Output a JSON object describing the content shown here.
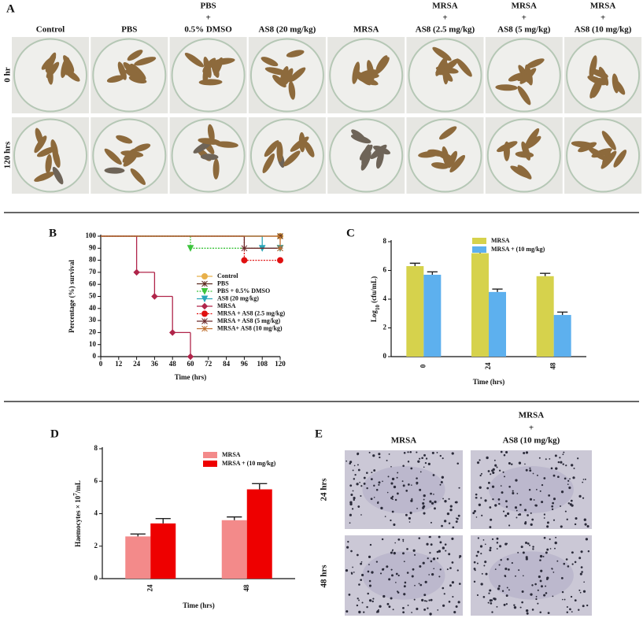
{
  "panel_a": {
    "label": "A",
    "columns": [
      [
        "Control"
      ],
      [
        "PBS"
      ],
      [
        "PBS",
        "+",
        "0.5% DMSO"
      ],
      [
        "AS8 (20 mg/kg)"
      ],
      [
        "MRSA"
      ],
      [
        "MRSA",
        "+",
        "AS8 (2.5 mg/kg)"
      ],
      [
        "MRSA",
        "+",
        "AS8 (5 mg/kg)"
      ],
      [
        "MRSA",
        "+",
        "AS8 (10 mg/kg)"
      ]
    ],
    "rows": [
      "0 hr",
      "120 hrs"
    ]
  },
  "chart_data": [
    {
      "label": "B",
      "type": "line",
      "step": true,
      "x_label": "Time (hrs)",
      "y_label": "Percentage (%) survival",
      "xlim": [
        0,
        120
      ],
      "xticks": [
        0,
        12,
        24,
        36,
        48,
        60,
        72,
        84,
        96,
        108,
        120
      ],
      "ylim": [
        0,
        100
      ],
      "yticks": [
        0,
        10,
        20,
        30,
        40,
        50,
        60,
        70,
        80,
        90,
        100
      ],
      "series": [
        {
          "name": "Control",
          "color": "#e8b04a",
          "marker": "circle",
          "x": [
            0,
            120
          ],
          "values": [
            100,
            100
          ]
        },
        {
          "name": "PBS",
          "color": "#5c2b20",
          "marker": "star",
          "x": [
            0,
            120
          ],
          "values": [
            100,
            100
          ]
        },
        {
          "name": "PBS + 0.5% DMSO",
          "color": "#3cc43c",
          "marker": "triangle-down",
          "dashed": true,
          "x": [
            0,
            60,
            120
          ],
          "values": [
            100,
            90,
            90
          ]
        },
        {
          "name": "AS8 (20 mg/kg)",
          "color": "#2aa6b8",
          "marker": "triangle-down",
          "x": [
            0,
            108,
            120
          ],
          "values": [
            100,
            90,
            90
          ]
        },
        {
          "name": "MRSA",
          "color": "#b0254a",
          "marker": "diamond",
          "x": [
            0,
            24,
            36,
            48,
            60
          ],
          "values": [
            100,
            70,
            50,
            20,
            0
          ]
        },
        {
          "name": "MRSA + AS8 (2.5 mg/kg)",
          "color": "#e01010",
          "marker": "circle",
          "dashed": true,
          "x": [
            0,
            96,
            120
          ],
          "values": [
            100,
            80,
            80
          ]
        },
        {
          "name": "MRSA + AS8 (5 mg/kg)",
          "color": "#6b2a2a",
          "marker": "star",
          "x": [
            0,
            96,
            120
          ],
          "values": [
            100,
            90,
            90
          ]
        },
        {
          "name": "MRSA+ AS8 (10 mg/kg)",
          "color": "#c07030",
          "marker": "star",
          "x": [
            0,
            120
          ],
          "values": [
            100,
            90
          ]
        }
      ]
    },
    {
      "label": "C",
      "type": "bar",
      "categories": [
        "0",
        "24",
        "48"
      ],
      "x_label": "Time (hrs)",
      "y_label": [
        {
          "text": "Log"
        },
        {
          "text": "10",
          "shift": "sub"
        },
        {
          "text": " (cfu/mL)"
        }
      ],
      "ylim": [
        0,
        8
      ],
      "yticks": [
        0,
        2,
        4,
        6,
        8
      ],
      "series": [
        {
          "name": "MRSA",
          "color": "#d6d24c",
          "values": [
            6.3,
            7.2,
            5.6
          ],
          "errors": [
            0.2,
            0.2,
            0.2
          ]
        },
        {
          "name": "MRSA + (10 mg/kg)",
          "color": "#5db0ee",
          "values": [
            5.7,
            4.5,
            2.9
          ],
          "errors": [
            0.2,
            0.2,
            0.2
          ]
        }
      ]
    },
    {
      "label": "D",
      "type": "bar",
      "categories": [
        "24",
        "48"
      ],
      "x_label": "Time (hrs)",
      "y_label": [
        {
          "text": "Haemocytes × 10"
        },
        {
          "text": "7",
          "shift": "super"
        },
        {
          "text": "/mL"
        }
      ],
      "ylim": [
        0,
        8
      ],
      "yticks": [
        0,
        2,
        4,
        6,
        8
      ],
      "series": [
        {
          "name": "MRSA",
          "color": "#f38a8a",
          "values": [
            2.6,
            3.6
          ],
          "errors": [
            0.15,
            0.2
          ]
        },
        {
          "name": "MRSA + (10 mg/kg)",
          "color": "#ee0000",
          "values": [
            3.4,
            5.5
          ],
          "errors": [
            0.3,
            0.35
          ]
        }
      ]
    }
  ],
  "panel_e": {
    "label": "E",
    "columns": [
      [
        "MRSA"
      ],
      [
        "MRSA",
        "+",
        "AS8 (10 mg/kg)"
      ]
    ],
    "rows": [
      "24 hrs",
      "48 hrs"
    ]
  }
}
